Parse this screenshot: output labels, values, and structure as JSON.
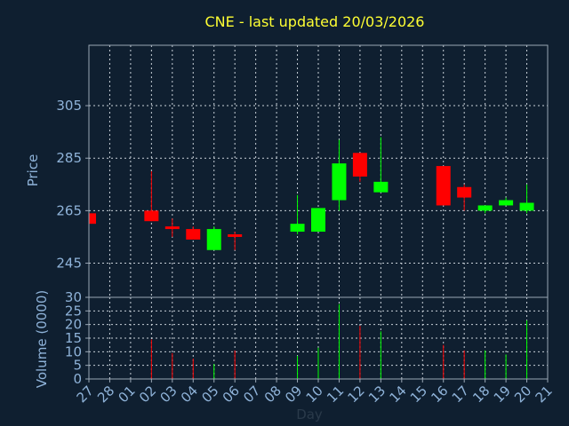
{
  "chart_data": {
    "type": "candlestick",
    "title": "CNE - last updated 20/03/2026",
    "xlabel": "Day",
    "x_tick_labels": [
      "27",
      "28",
      "01",
      "02",
      "03",
      "04",
      "05",
      "06",
      "07",
      "08",
      "09",
      "10",
      "11",
      "12",
      "13",
      "14",
      "15",
      "16",
      "17",
      "18",
      "19",
      "20",
      "21"
    ],
    "price_panel": {
      "ylabel": "Price",
      "ylim": [
        232,
        328
      ],
      "yticks": [
        245,
        265,
        285,
        305
      ],
      "candles": [
        {
          "day": "27",
          "open": 264,
          "high": 265,
          "low": 260,
          "close": 260
        },
        {
          "day": "02",
          "open": 265,
          "high": 280,
          "low": 261,
          "close": 261
        },
        {
          "day": "03",
          "open": 259,
          "high": 262,
          "low": 255,
          "close": 258
        },
        {
          "day": "04",
          "open": 258,
          "high": 259,
          "low": 254,
          "close": 254
        },
        {
          "day": "05",
          "open": 250,
          "high": 259,
          "low": 250,
          "close": 258
        },
        {
          "day": "06",
          "open": 256,
          "high": 257,
          "low": 250,
          "close": 255
        },
        {
          "day": "09",
          "open": 257,
          "high": 271,
          "low": 256,
          "close": 260
        },
        {
          "day": "10",
          "open": 257,
          "high": 266,
          "low": 257,
          "close": 266
        },
        {
          "day": "11",
          "open": 269,
          "high": 292,
          "low": 265,
          "close": 283
        },
        {
          "day": "12",
          "open": 287,
          "high": 287,
          "low": 276,
          "close": 278
        },
        {
          "day": "13",
          "open": 272,
          "high": 293,
          "low": 272,
          "close": 276
        },
        {
          "day": "16",
          "open": 282,
          "high": 282,
          "low": 267,
          "close": 267
        },
        {
          "day": "17",
          "open": 274,
          "high": 275,
          "low": 265,
          "close": 270
        },
        {
          "day": "18",
          "open": 265,
          "high": 267,
          "low": 264,
          "close": 267
        },
        {
          "day": "19",
          "open": 267,
          "high": 270,
          "low": 267,
          "close": 269
        },
        {
          "day": "20",
          "open": 265,
          "high": 275,
          "low": 264,
          "close": 268
        }
      ]
    },
    "volume_panel": {
      "ylabel": "Volume (0000)",
      "ylim": [
        0,
        30
      ],
      "yticks": [
        0,
        5,
        10,
        15,
        20,
        25,
        30
      ],
      "bars": [
        {
          "day": "02",
          "value": 14.5,
          "dir": "down"
        },
        {
          "day": "03",
          "value": 9.5,
          "dir": "down"
        },
        {
          "day": "04",
          "value": 7.5,
          "dir": "down"
        },
        {
          "day": "05",
          "value": 5.5,
          "dir": "up"
        },
        {
          "day": "06",
          "value": 10.5,
          "dir": "down"
        },
        {
          "day": "09",
          "value": 8.5,
          "dir": "up"
        },
        {
          "day": "10",
          "value": 11.5,
          "dir": "up"
        },
        {
          "day": "11",
          "value": 27.5,
          "dir": "up"
        },
        {
          "day": "12",
          "value": 19.5,
          "dir": "down"
        },
        {
          "day": "13",
          "value": 17.5,
          "dir": "up"
        },
        {
          "day": "16",
          "value": 12.5,
          "dir": "down"
        },
        {
          "day": "17",
          "value": 10.5,
          "dir": "down"
        },
        {
          "day": "18",
          "value": 10.5,
          "dir": "up"
        },
        {
          "day": "19",
          "value": 9.0,
          "dir": "up"
        },
        {
          "day": "20",
          "value": 21.5,
          "dir": "up"
        }
      ]
    },
    "grid": true,
    "colors": {
      "up": "#00ff00",
      "down": "#ff0000",
      "title": "#ffff33",
      "axis_text": "#8fb3d9",
      "background": "#0f1f30"
    }
  }
}
